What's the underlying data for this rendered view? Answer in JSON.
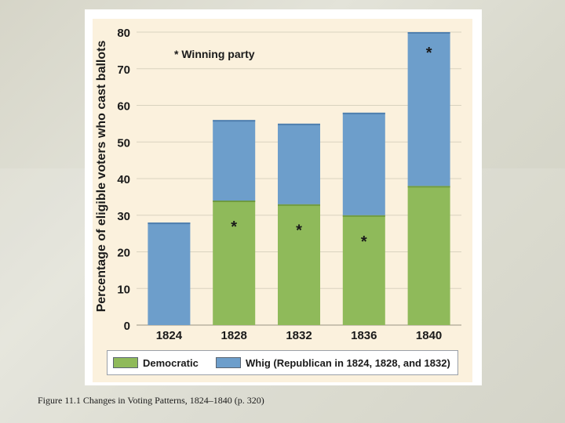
{
  "caption": "Figure 11.1 Changes in Voting Patterns, 1824–1840 (p. 320)",
  "chart_data": {
    "type": "bar",
    "stacked": true,
    "categories": [
      "1824",
      "1828",
      "1832",
      "1836",
      "1840"
    ],
    "series": [
      {
        "name": "Democratic",
        "color": "#8fba5a",
        "values": [
          0,
          34,
          33,
          30,
          38
        ]
      },
      {
        "name": "Whig (Republican in 1824, 1828, and 1832)",
        "color": "#6d9ecb",
        "values": [
          28,
          22,
          22,
          28,
          42
        ]
      }
    ],
    "totals": [
      28,
      56,
      55,
      58,
      80
    ],
    "winning_marker": "*",
    "winners": [
      null,
      "Democratic",
      "Democratic",
      "Democratic",
      "Whig (Republican in 1824, 1828, and 1832)"
    ],
    "annotation": "* Winning party",
    "xlabel": "",
    "ylabel": "Percentage of eligible voters who cast ballots",
    "ylim": [
      0,
      80
    ],
    "yticks": [
      0,
      10,
      20,
      30,
      40,
      50,
      60,
      70,
      80
    ],
    "grid": true,
    "legend_position": "bottom"
  }
}
